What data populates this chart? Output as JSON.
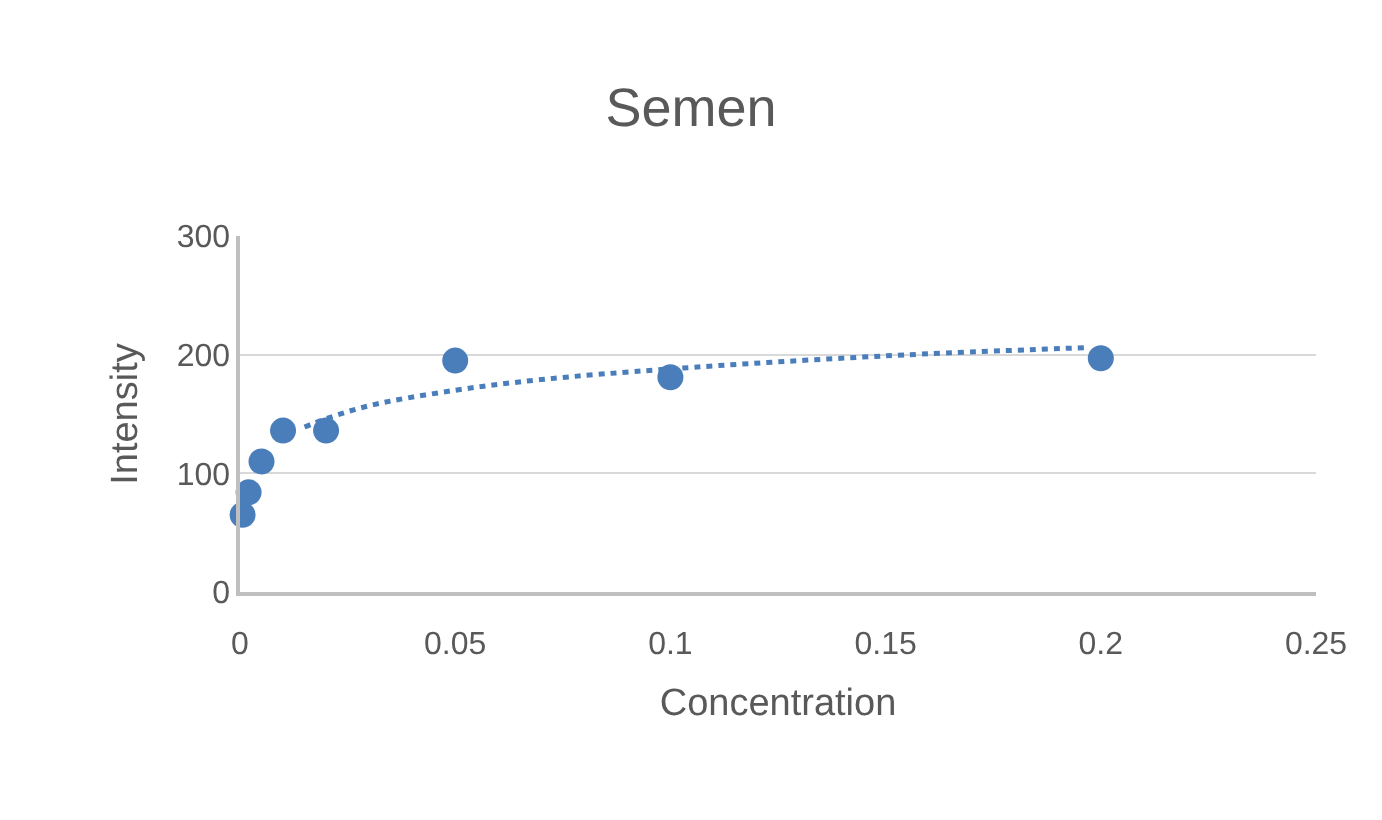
{
  "chart_data": {
    "type": "scatter",
    "title": "Semen",
    "xlabel": "Concentration",
    "ylabel": "Intensity",
    "xlim": [
      0,
      0.25
    ],
    "xticks": [
      0,
      0.05,
      0.1,
      0.15,
      0.2,
      0.25
    ],
    "ylim": [
      0,
      300
    ],
    "yticks": [
      0,
      100,
      200,
      300
    ],
    "grid": "y",
    "series": [
      {
        "color": "#4a7ebb",
        "marker": "circle",
        "x": [
          0.0006,
          0.002,
          0.005,
          0.01,
          0.02,
          0.05,
          0.1,
          0.2
        ],
        "values": [
          65,
          84,
          110,
          136,
          136,
          195,
          181,
          197
        ]
      },
      {
        "type": "line",
        "color": "#4a7ebb",
        "marker": "none",
        "line_style": "dotted",
        "x": [
          0.015,
          0.02,
          0.03,
          0.05,
          0.07,
          0.1,
          0.15,
          0.197
        ],
        "values": [
          139,
          146,
          157,
          170,
          179,
          188,
          199,
          206
        ]
      }
    ]
  }
}
